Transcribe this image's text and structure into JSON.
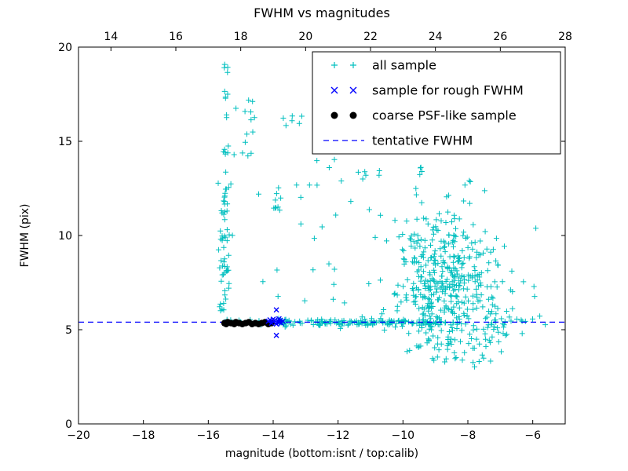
{
  "chart_data": {
    "type": "scatter",
    "title": "FWHM vs magnitudes",
    "xlabel": "magnitude (bottom:isnt / top:calib)",
    "ylabel": "FWHM (pix)",
    "xlim": [
      -20,
      -5
    ],
    "ylim": [
      0,
      20
    ],
    "axes": {
      "bottom_ticks": [
        -20,
        -18,
        -16,
        -14,
        -12,
        -10,
        -8,
        -6
      ],
      "top_ticks": [
        14,
        16,
        18,
        20,
        22,
        24,
        26,
        28
      ],
      "top_axis_offset": -33,
      "y_ticks": [
        0,
        5,
        10,
        15,
        20
      ],
      "grid": false
    },
    "tentative_fwhm": 5.4,
    "legend_position": "upper right",
    "seed": 20240613,
    "series": [
      {
        "name": "all sample",
        "marker": "plus",
        "color": "#00bfbf",
        "clusters": [
          {
            "count": 60,
            "x": {
              "dist": "normal",
              "mean": -15.5,
              "sd": 0.08
            },
            "y": {
              "dist": "uniform",
              "min": 5.5,
              "max": 13.5
            }
          },
          {
            "count": 18,
            "x": {
              "dist": "normal",
              "mean": -15.45,
              "sd": 0.12
            },
            "y": {
              "dist": "uniform",
              "min": 13.5,
              "max": 19.2
            }
          },
          {
            "count": 12,
            "x": {
              "dist": "uniform",
              "min": -14.95,
              "max": -14.55
            },
            "y": {
              "dist": "uniform",
              "min": 13.8,
              "max": 17.6
            }
          },
          {
            "count": 8,
            "x": {
              "dist": "uniform",
              "min": -14.0,
              "max": -13.75
            },
            "y": {
              "dist": "uniform",
              "min": 11.3,
              "max": 12.6
            }
          },
          {
            "count": 6,
            "x": {
              "dist": "uniform",
              "min": -13.7,
              "max": -13.05
            },
            "y": {
              "dist": "uniform",
              "min": 15.0,
              "max": 16.6
            }
          },
          {
            "count": 130,
            "x": {
              "dist": "uniform",
              "min": -13.9,
              "max": -8.8
            },
            "y": {
              "dist": "normal",
              "mean": 5.38,
              "sd": 0.09
            }
          },
          {
            "count": 60,
            "x": {
              "dist": "uniform",
              "min": -15.6,
              "max": -6.0
            },
            "y": {
              "dist": "normal",
              "mean": 5.4,
              "sd": 0.12
            }
          },
          {
            "count": 420,
            "x": {
              "dist": "normal",
              "mean": -8.7,
              "sd": 0.8,
              "min": -10.8,
              "max": -6.4
            },
            "y": {
              "dist": "normal",
              "mean": 7.5,
              "sd": 2.0,
              "min": 3.8,
              "max": 13.8
            }
          },
          {
            "count": 30,
            "x": {
              "dist": "uniform",
              "min": -14.5,
              "max": -10.5
            },
            "y": {
              "dist": "uniform",
              "min": 6.0,
              "max": 14.0
            }
          },
          {
            "count": 10,
            "x": {
              "dist": "uniform",
              "min": -12.2,
              "max": -10.2
            },
            "y": {
              "dist": "uniform",
              "min": 12.5,
              "max": 15.2
            }
          },
          {
            "count": 6,
            "x": {
              "dist": "uniform",
              "min": -10.0,
              "max": -9.3
            },
            "y": {
              "dist": "uniform",
              "min": 13.0,
              "max": 15.2
            }
          },
          {
            "count": 16,
            "x": {
              "dist": "uniform",
              "min": -7.6,
              "max": -5.6
            },
            "y": {
              "dist": "uniform",
              "min": 4.6,
              "max": 6.8
            }
          },
          {
            "count": 8,
            "x": {
              "dist": "uniform",
              "min": -7.4,
              "max": -5.8
            },
            "y": {
              "dist": "uniform",
              "min": 7.0,
              "max": 10.5
            }
          },
          {
            "count": 35,
            "x": {
              "dist": "normal",
              "mean": -8.2,
              "sd": 0.6,
              "min": -9.5,
              "max": -6.2
            },
            "y": {
              "dist": "uniform",
              "min": 3.0,
              "max": 5.2
            }
          }
        ]
      },
      {
        "name": "sample for rough FWHM",
        "marker": "x",
        "color": "#0000ff",
        "points": [
          [
            -14.15,
            5.45
          ],
          [
            -14.1,
            5.52
          ],
          [
            -14.05,
            5.35
          ],
          [
            -14.0,
            5.42
          ],
          [
            -13.95,
            5.5
          ],
          [
            -13.9,
            6.05
          ],
          [
            -13.9,
            5.3
          ],
          [
            -13.85,
            5.45
          ],
          [
            -13.82,
            5.58
          ],
          [
            -13.8,
            5.4
          ],
          [
            -13.78,
            5.5
          ],
          [
            -13.75,
            5.35
          ],
          [
            -13.9,
            4.7
          ],
          [
            -14.0,
            5.56
          ],
          [
            -13.7,
            5.45
          ]
        ]
      },
      {
        "name": "coarse PSF-like sample",
        "marker": "dot",
        "color": "#000000",
        "points": [
          [
            -15.5,
            5.35
          ],
          [
            -15.45,
            5.3
          ],
          [
            -15.4,
            5.4
          ],
          [
            -15.3,
            5.35
          ],
          [
            -15.2,
            5.3
          ],
          [
            -15.15,
            5.4
          ],
          [
            -15.05,
            5.35
          ],
          [
            -14.95,
            5.3
          ],
          [
            -14.85,
            5.35
          ],
          [
            -14.75,
            5.4
          ],
          [
            -14.65,
            5.3
          ],
          [
            -14.55,
            5.35
          ],
          [
            -14.45,
            5.3
          ],
          [
            -14.35,
            5.35
          ],
          [
            -14.25,
            5.4
          ],
          [
            -14.15,
            5.3
          ],
          [
            -14.05,
            5.35
          ]
        ]
      },
      {
        "name": "tentative FWHM",
        "marker": "dashed",
        "color": "#0000ff",
        "y": 5.4
      }
    ]
  }
}
